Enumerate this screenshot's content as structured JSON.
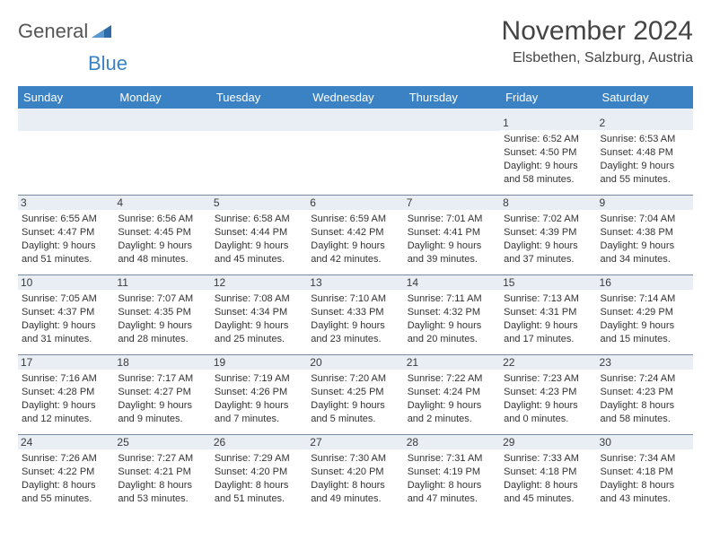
{
  "logo": {
    "main": "General",
    "sub": "Blue"
  },
  "title": "November 2024",
  "location": "Elsbethen, Salzburg, Austria",
  "colors": {
    "header_bg": "#3b82c4",
    "header_text": "#ffffff",
    "daynum_bg": "#e8eef3",
    "body_text": "#333333",
    "rule": "#7a8aa0"
  },
  "weekdays": [
    "Sunday",
    "Monday",
    "Tuesday",
    "Wednesday",
    "Thursday",
    "Friday",
    "Saturday"
  ],
  "weeks": [
    [
      {
        "n": "",
        "sunrise": "",
        "sunset": "",
        "daylight": ""
      },
      {
        "n": "",
        "sunrise": "",
        "sunset": "",
        "daylight": ""
      },
      {
        "n": "",
        "sunrise": "",
        "sunset": "",
        "daylight": ""
      },
      {
        "n": "",
        "sunrise": "",
        "sunset": "",
        "daylight": ""
      },
      {
        "n": "",
        "sunrise": "",
        "sunset": "",
        "daylight": ""
      },
      {
        "n": "1",
        "sunrise": "Sunrise: 6:52 AM",
        "sunset": "Sunset: 4:50 PM",
        "daylight": "Daylight: 9 hours and 58 minutes."
      },
      {
        "n": "2",
        "sunrise": "Sunrise: 6:53 AM",
        "sunset": "Sunset: 4:48 PM",
        "daylight": "Daylight: 9 hours and 55 minutes."
      }
    ],
    [
      {
        "n": "3",
        "sunrise": "Sunrise: 6:55 AM",
        "sunset": "Sunset: 4:47 PM",
        "daylight": "Daylight: 9 hours and 51 minutes."
      },
      {
        "n": "4",
        "sunrise": "Sunrise: 6:56 AM",
        "sunset": "Sunset: 4:45 PM",
        "daylight": "Daylight: 9 hours and 48 minutes."
      },
      {
        "n": "5",
        "sunrise": "Sunrise: 6:58 AM",
        "sunset": "Sunset: 4:44 PM",
        "daylight": "Daylight: 9 hours and 45 minutes."
      },
      {
        "n": "6",
        "sunrise": "Sunrise: 6:59 AM",
        "sunset": "Sunset: 4:42 PM",
        "daylight": "Daylight: 9 hours and 42 minutes."
      },
      {
        "n": "7",
        "sunrise": "Sunrise: 7:01 AM",
        "sunset": "Sunset: 4:41 PM",
        "daylight": "Daylight: 9 hours and 39 minutes."
      },
      {
        "n": "8",
        "sunrise": "Sunrise: 7:02 AM",
        "sunset": "Sunset: 4:39 PM",
        "daylight": "Daylight: 9 hours and 37 minutes."
      },
      {
        "n": "9",
        "sunrise": "Sunrise: 7:04 AM",
        "sunset": "Sunset: 4:38 PM",
        "daylight": "Daylight: 9 hours and 34 minutes."
      }
    ],
    [
      {
        "n": "10",
        "sunrise": "Sunrise: 7:05 AM",
        "sunset": "Sunset: 4:37 PM",
        "daylight": "Daylight: 9 hours and 31 minutes."
      },
      {
        "n": "11",
        "sunrise": "Sunrise: 7:07 AM",
        "sunset": "Sunset: 4:35 PM",
        "daylight": "Daylight: 9 hours and 28 minutes."
      },
      {
        "n": "12",
        "sunrise": "Sunrise: 7:08 AM",
        "sunset": "Sunset: 4:34 PM",
        "daylight": "Daylight: 9 hours and 25 minutes."
      },
      {
        "n": "13",
        "sunrise": "Sunrise: 7:10 AM",
        "sunset": "Sunset: 4:33 PM",
        "daylight": "Daylight: 9 hours and 23 minutes."
      },
      {
        "n": "14",
        "sunrise": "Sunrise: 7:11 AM",
        "sunset": "Sunset: 4:32 PM",
        "daylight": "Daylight: 9 hours and 20 minutes."
      },
      {
        "n": "15",
        "sunrise": "Sunrise: 7:13 AM",
        "sunset": "Sunset: 4:31 PM",
        "daylight": "Daylight: 9 hours and 17 minutes."
      },
      {
        "n": "16",
        "sunrise": "Sunrise: 7:14 AM",
        "sunset": "Sunset: 4:29 PM",
        "daylight": "Daylight: 9 hours and 15 minutes."
      }
    ],
    [
      {
        "n": "17",
        "sunrise": "Sunrise: 7:16 AM",
        "sunset": "Sunset: 4:28 PM",
        "daylight": "Daylight: 9 hours and 12 minutes."
      },
      {
        "n": "18",
        "sunrise": "Sunrise: 7:17 AM",
        "sunset": "Sunset: 4:27 PM",
        "daylight": "Daylight: 9 hours and 9 minutes."
      },
      {
        "n": "19",
        "sunrise": "Sunrise: 7:19 AM",
        "sunset": "Sunset: 4:26 PM",
        "daylight": "Daylight: 9 hours and 7 minutes."
      },
      {
        "n": "20",
        "sunrise": "Sunrise: 7:20 AM",
        "sunset": "Sunset: 4:25 PM",
        "daylight": "Daylight: 9 hours and 5 minutes."
      },
      {
        "n": "21",
        "sunrise": "Sunrise: 7:22 AM",
        "sunset": "Sunset: 4:24 PM",
        "daylight": "Daylight: 9 hours and 2 minutes."
      },
      {
        "n": "22",
        "sunrise": "Sunrise: 7:23 AM",
        "sunset": "Sunset: 4:23 PM",
        "daylight": "Daylight: 9 hours and 0 minutes."
      },
      {
        "n": "23",
        "sunrise": "Sunrise: 7:24 AM",
        "sunset": "Sunset: 4:23 PM",
        "daylight": "Daylight: 8 hours and 58 minutes."
      }
    ],
    [
      {
        "n": "24",
        "sunrise": "Sunrise: 7:26 AM",
        "sunset": "Sunset: 4:22 PM",
        "daylight": "Daylight: 8 hours and 55 minutes."
      },
      {
        "n": "25",
        "sunrise": "Sunrise: 7:27 AM",
        "sunset": "Sunset: 4:21 PM",
        "daylight": "Daylight: 8 hours and 53 minutes."
      },
      {
        "n": "26",
        "sunrise": "Sunrise: 7:29 AM",
        "sunset": "Sunset: 4:20 PM",
        "daylight": "Daylight: 8 hours and 51 minutes."
      },
      {
        "n": "27",
        "sunrise": "Sunrise: 7:30 AM",
        "sunset": "Sunset: 4:20 PM",
        "daylight": "Daylight: 8 hours and 49 minutes."
      },
      {
        "n": "28",
        "sunrise": "Sunrise: 7:31 AM",
        "sunset": "Sunset: 4:19 PM",
        "daylight": "Daylight: 8 hours and 47 minutes."
      },
      {
        "n": "29",
        "sunrise": "Sunrise: 7:33 AM",
        "sunset": "Sunset: 4:18 PM",
        "daylight": "Daylight: 8 hours and 45 minutes."
      },
      {
        "n": "30",
        "sunrise": "Sunrise: 7:34 AM",
        "sunset": "Sunset: 4:18 PM",
        "daylight": "Daylight: 8 hours and 43 minutes."
      }
    ]
  ]
}
